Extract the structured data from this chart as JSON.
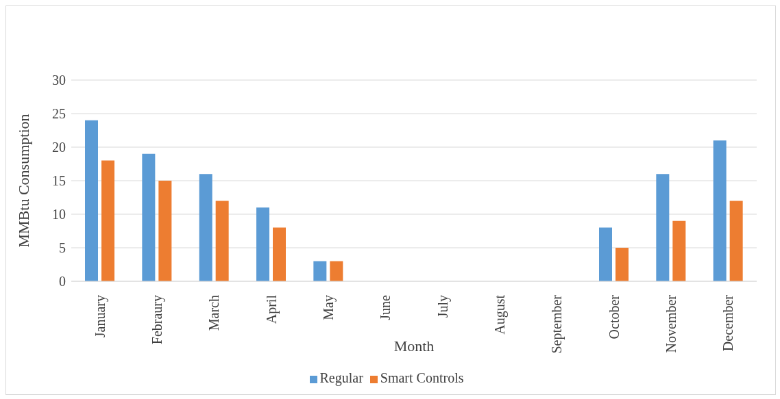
{
  "chart_data": {
    "type": "bar",
    "xlabel": "Month",
    "ylabel": "MMBtu Consumption",
    "categories": [
      "January",
      "Febraury",
      "March",
      "April",
      "May",
      "June",
      "July",
      "August",
      "September",
      "October",
      "November",
      "December"
    ],
    "series": [
      {
        "name": "Regular",
        "color": "#5b9bd5",
        "values": [
          24,
          19,
          16,
          11,
          3,
          0,
          0,
          0,
          0,
          8,
          16,
          21
        ]
      },
      {
        "name": "Smart Controls",
        "color": "#ed7d31",
        "values": [
          18,
          15,
          12,
          8,
          3,
          0,
          0,
          0,
          0,
          5,
          9,
          12
        ]
      }
    ],
    "ylim": [
      0,
      30
    ],
    "yticks": [
      0,
      5,
      10,
      15,
      20,
      25,
      30
    ],
    "grid": "y",
    "legend": "bottom"
  }
}
